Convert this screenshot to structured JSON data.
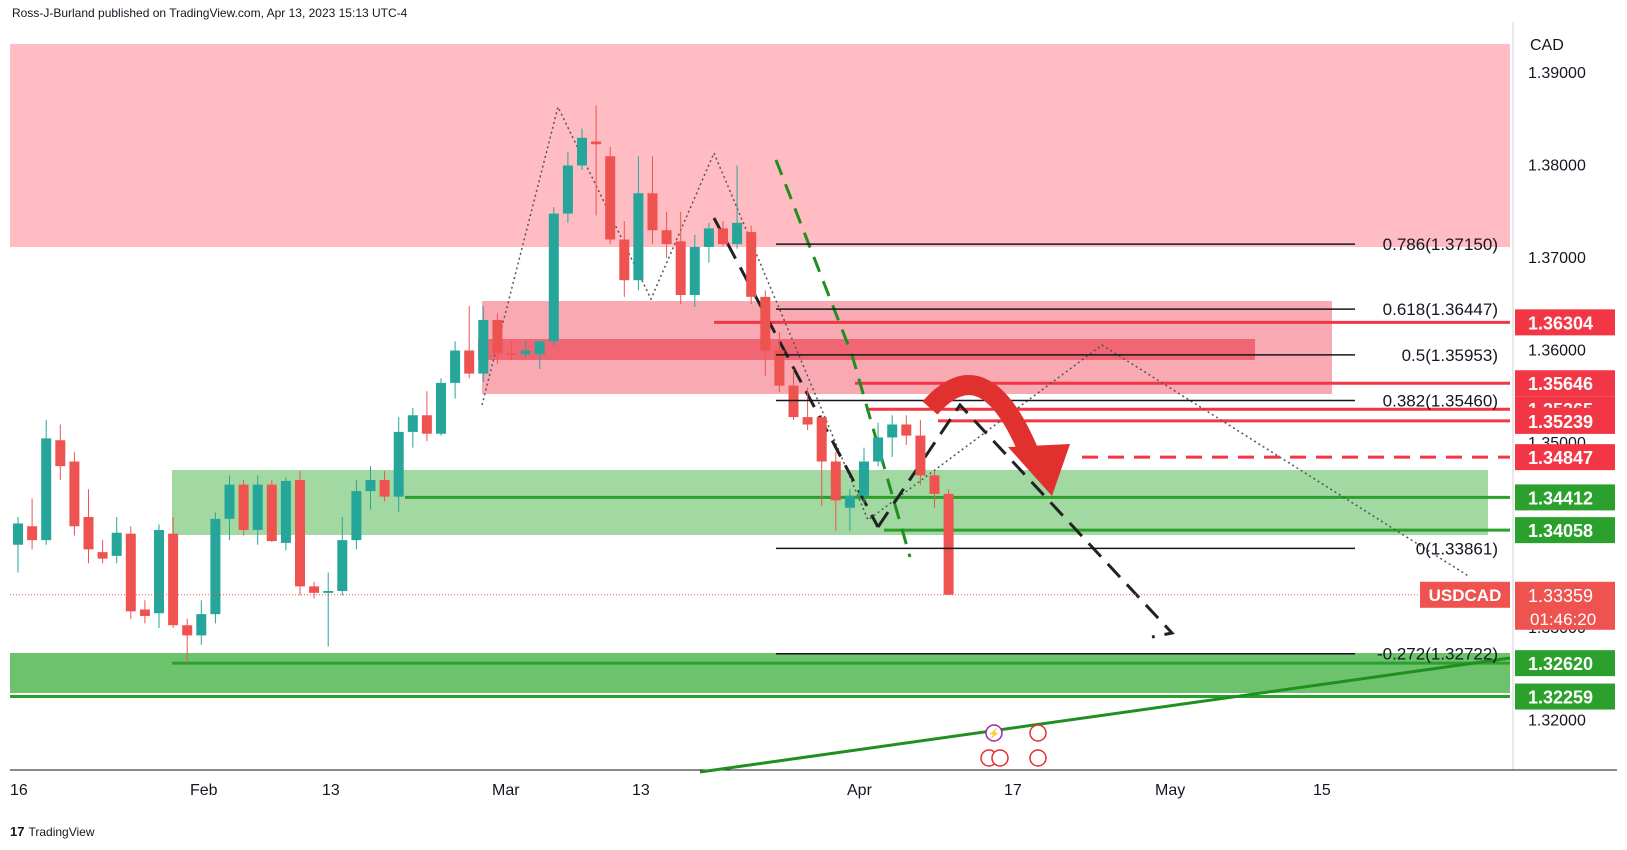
{
  "header": {
    "attribution": "Ross-J-Burland published on TradingView.com, Apr 13, 2023 15:13 UTC-4"
  },
  "footer": {
    "brand": "TradingView",
    "logo_glyph": "17"
  },
  "colors": {
    "bull": "#26a69a",
    "bear": "#ef5350",
    "supply_zone": "#ffbcc2",
    "demand_zone": "#8fd18f",
    "support_line": "#2ca02c",
    "resistance_line": "#f23645"
  },
  "chart_data": {
    "type": "candlestick",
    "symbol": "USDCAD",
    "currency": "CAD",
    "price_tag": {
      "value": "1.33359",
      "countdown": "01:46:20"
    },
    "y_ticks": [
      "1.39000",
      "1.38000",
      "1.37000",
      "1.36000",
      "1.35000",
      "1.34000",
      "1.33000",
      "1.32000"
    ],
    "x_ticks": [
      "16",
      "Feb",
      "13",
      "Mar",
      "13",
      "Apr",
      "17",
      "May",
      "15"
    ],
    "fib_levels": [
      {
        "label": "0.786(1.37150)",
        "price": 1.3715
      },
      {
        "label": "0.618(1.36447)",
        "price": 1.36447
      },
      {
        "label": "0.5(1.35953)",
        "price": 1.35953
      },
      {
        "label": "0.382(1.35460)",
        "price": 1.3546
      },
      {
        "label": "0(1.33861)",
        "price": 1.33861
      },
      {
        "label": "-0.272(1.32722)",
        "price": 1.32722
      }
    ],
    "price_labels": [
      {
        "value": "1.36304",
        "price": 1.36304,
        "kind": "resistance"
      },
      {
        "value": "1.35646",
        "price": 1.35646,
        "kind": "resistance"
      },
      {
        "value": "1.35365",
        "price": 1.35365,
        "kind": "resistance"
      },
      {
        "value": "1.35239",
        "price": 1.35239,
        "kind": "resistance"
      },
      {
        "value": "1.34847",
        "price": 1.34847,
        "kind": "resistance"
      },
      {
        "value": "1.34412",
        "price": 1.34412,
        "kind": "support"
      },
      {
        "value": "1.34058",
        "price": 1.34058,
        "kind": "support"
      },
      {
        "value": "1.32620",
        "price": 1.3262,
        "kind": "support"
      },
      {
        "value": "1.32259",
        "price": 1.32259,
        "kind": "support"
      }
    ],
    "candles": [
      {
        "o": 1.339,
        "h": 1.342,
        "l": 1.336,
        "c": 1.3413
      },
      {
        "o": 1.341,
        "h": 1.344,
        "l": 1.3385,
        "c": 1.3395
      },
      {
        "o": 1.3395,
        "h": 1.3525,
        "l": 1.339,
        "c": 1.3505
      },
      {
        "o": 1.3503,
        "h": 1.352,
        "l": 1.346,
        "c": 1.3475
      },
      {
        "o": 1.348,
        "h": 1.349,
        "l": 1.34,
        "c": 1.341
      },
      {
        "o": 1.342,
        "h": 1.345,
        "l": 1.337,
        "c": 1.3385
      },
      {
        "o": 1.3382,
        "h": 1.3395,
        "l": 1.337,
        "c": 1.3375
      },
      {
        "o": 1.3378,
        "h": 1.342,
        "l": 1.337,
        "c": 1.3403
      },
      {
        "o": 1.3402,
        "h": 1.341,
        "l": 1.331,
        "c": 1.3318
      },
      {
        "o": 1.332,
        "h": 1.333,
        "l": 1.3305,
        "c": 1.3313
      },
      {
        "o": 1.3316,
        "h": 1.3412,
        "l": 1.33,
        "c": 1.3406
      },
      {
        "o": 1.3402,
        "h": 1.342,
        "l": 1.33,
        "c": 1.3303
      },
      {
        "o": 1.3303,
        "h": 1.331,
        "l": 1.3262,
        "c": 1.3292
      },
      {
        "o": 1.3292,
        "h": 1.333,
        "l": 1.3282,
        "c": 1.3315
      },
      {
        "o": 1.3315,
        "h": 1.3425,
        "l": 1.3305,
        "c": 1.3418
      },
      {
        "o": 1.3418,
        "h": 1.3465,
        "l": 1.3395,
        "c": 1.3455
      },
      {
        "o": 1.3455,
        "h": 1.346,
        "l": 1.34,
        "c": 1.3406
      },
      {
        "o": 1.3406,
        "h": 1.3465,
        "l": 1.339,
        "c": 1.3455
      },
      {
        "o": 1.3455,
        "h": 1.346,
        "l": 1.3393,
        "c": 1.3394
      },
      {
        "o": 1.3392,
        "h": 1.3463,
        "l": 1.3384,
        "c": 1.3459
      },
      {
        "o": 1.346,
        "h": 1.347,
        "l": 1.3335,
        "c": 1.3345
      },
      {
        "o": 1.3345,
        "h": 1.335,
        "l": 1.3332,
        "c": 1.3338
      },
      {
        "o": 1.3338,
        "h": 1.336,
        "l": 1.328,
        "c": 1.334
      },
      {
        "o": 1.334,
        "h": 1.342,
        "l": 1.3335,
        "c": 1.3395
      },
      {
        "o": 1.3395,
        "h": 1.346,
        "l": 1.3385,
        "c": 1.3448
      },
      {
        "o": 1.3448,
        "h": 1.3475,
        "l": 1.3428,
        "c": 1.346
      },
      {
        "o": 1.346,
        "h": 1.347,
        "l": 1.3437,
        "c": 1.3442
      },
      {
        "o": 1.3442,
        "h": 1.3528,
        "l": 1.3425,
        "c": 1.3512
      },
      {
        "o": 1.3512,
        "h": 1.3538,
        "l": 1.3495,
        "c": 1.353
      },
      {
        "o": 1.353,
        "h": 1.3556,
        "l": 1.3502,
        "c": 1.351
      },
      {
        "o": 1.351,
        "h": 1.357,
        "l": 1.3508,
        "c": 1.3565
      },
      {
        "o": 1.3565,
        "h": 1.361,
        "l": 1.3548,
        "c": 1.36
      },
      {
        "o": 1.36,
        "h": 1.3648,
        "l": 1.357,
        "c": 1.3575
      },
      {
        "o": 1.3575,
        "h": 1.3648,
        "l": 1.3566,
        "c": 1.3633
      },
      {
        "o": 1.3633,
        "h": 1.364,
        "l": 1.3585,
        "c": 1.3597
      },
      {
        "o": 1.3597,
        "h": 1.361,
        "l": 1.359,
        "c": 1.3596
      },
      {
        "o": 1.3596,
        "h": 1.361,
        "l": 1.3592,
        "c": 1.36
      },
      {
        "o": 1.3596,
        "h": 1.361,
        "l": 1.358,
        "c": 1.361
      },
      {
        "o": 1.361,
        "h": 1.3755,
        "l": 1.3605,
        "c": 1.3748
      },
      {
        "o": 1.3748,
        "h": 1.3815,
        "l": 1.3738,
        "c": 1.38
      },
      {
        "o": 1.38,
        "h": 1.384,
        "l": 1.3795,
        "c": 1.383
      },
      {
        "o": 1.3826,
        "h": 1.3865,
        "l": 1.3746,
        "c": 1.3823
      },
      {
        "o": 1.381,
        "h": 1.382,
        "l": 1.3715,
        "c": 1.372
      },
      {
        "o": 1.372,
        "h": 1.374,
        "l": 1.3658,
        "c": 1.3676
      },
      {
        "o": 1.3676,
        "h": 1.381,
        "l": 1.3665,
        "c": 1.377
      },
      {
        "o": 1.377,
        "h": 1.381,
        "l": 1.3715,
        "c": 1.373
      },
      {
        "o": 1.373,
        "h": 1.375,
        "l": 1.37,
        "c": 1.3715
      },
      {
        "o": 1.3718,
        "h": 1.375,
        "l": 1.365,
        "c": 1.366
      },
      {
        "o": 1.366,
        "h": 1.3725,
        "l": 1.3647,
        "c": 1.3712
      },
      {
        "o": 1.3712,
        "h": 1.3738,
        "l": 1.3695,
        "c": 1.3732
      },
      {
        "o": 1.3732,
        "h": 1.374,
        "l": 1.3713,
        "c": 1.3715
      },
      {
        "o": 1.3715,
        "h": 1.38,
        "l": 1.371,
        "c": 1.3738
      },
      {
        "o": 1.3728,
        "h": 1.3735,
        "l": 1.365,
        "c": 1.3658
      },
      {
        "o": 1.3658,
        "h": 1.3665,
        "l": 1.3572,
        "c": 1.36
      },
      {
        "o": 1.36,
        "h": 1.362,
        "l": 1.3555,
        "c": 1.3562
      },
      {
        "o": 1.3562,
        "h": 1.358,
        "l": 1.3525,
        "c": 1.3528
      },
      {
        "o": 1.3528,
        "h": 1.356,
        "l": 1.3514,
        "c": 1.352
      },
      {
        "o": 1.3528,
        "h": 1.353,
        "l": 1.3432,
        "c": 1.348
      },
      {
        "o": 1.348,
        "h": 1.349,
        "l": 1.3405,
        "c": 1.3438
      },
      {
        "o": 1.343,
        "h": 1.345,
        "l": 1.3405,
        "c": 1.3443
      },
      {
        "o": 1.3443,
        "h": 1.3495,
        "l": 1.3435,
        "c": 1.348
      },
      {
        "o": 1.348,
        "h": 1.3522,
        "l": 1.3475,
        "c": 1.3506
      },
      {
        "o": 1.3506,
        "h": 1.353,
        "l": 1.3485,
        "c": 1.352
      },
      {
        "o": 1.352,
        "h": 1.353,
        "l": 1.3498,
        "c": 1.3508
      },
      {
        "o": 1.3508,
        "h": 1.3525,
        "l": 1.3455,
        "c": 1.3465
      },
      {
        "o": 1.3465,
        "h": 1.347,
        "l": 1.343,
        "c": 1.3445
      },
      {
        "o": 1.3445,
        "h": 1.345,
        "l": 1.3336,
        "c": 1.3336
      }
    ]
  }
}
